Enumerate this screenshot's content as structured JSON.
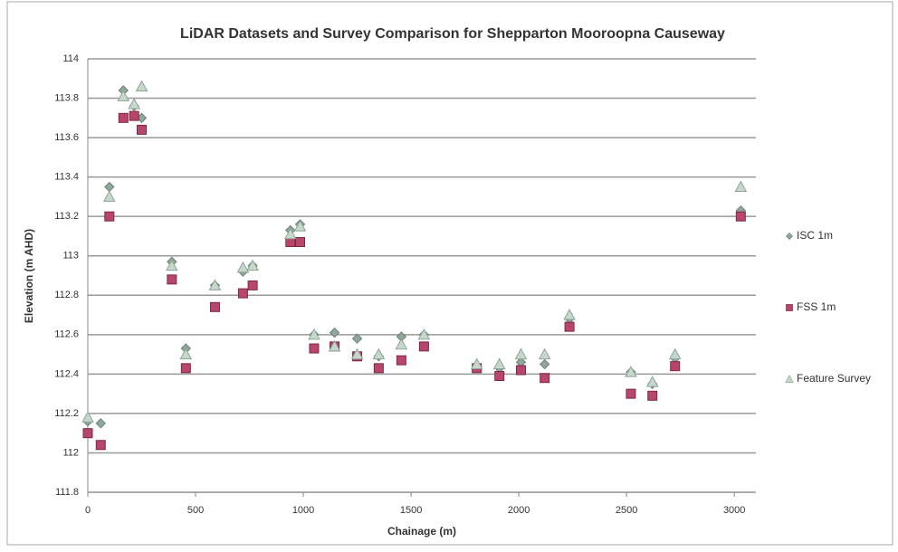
{
  "chart_data": {
    "type": "scatter",
    "title": "LiDAR Datasets and Survey Comparison for Shepparton Mooroopna Causeway",
    "x_label": "Chainage (m)",
    "y_label": "Elevation (m AHD)",
    "x": [
      0,
      60,
      100,
      165,
      215,
      250,
      390,
      455,
      590,
      720,
      765,
      940,
      985,
      1050,
      1145,
      1250,
      1350,
      1455,
      1560,
      1805,
      1910,
      2010,
      2120,
      2235,
      2520,
      2620,
      2725,
      3030
    ],
    "series": [
      {
        "name": "ISC 1m",
        "color": "#8fa89a",
        "marker": "diamond",
        "values": [
          112.16,
          112.15,
          113.35,
          113.84,
          113.76,
          113.7,
          112.97,
          112.53,
          112.85,
          112.92,
          112.95,
          113.13,
          113.16,
          112.6,
          112.61,
          112.58,
          112.49,
          112.59,
          112.6,
          112.44,
          112.43,
          112.46,
          112.45,
          112.68,
          112.41,
          112.35,
          112.48,
          113.23
        ]
      },
      {
        "name": "FSS 1m",
        "color": "#b8456a",
        "marker": "square",
        "values": [
          112.1,
          112.04,
          113.2,
          113.7,
          113.71,
          113.64,
          112.88,
          112.43,
          112.74,
          112.81,
          112.85,
          113.07,
          113.07,
          112.53,
          112.54,
          112.49,
          112.43,
          112.47,
          112.54,
          112.43,
          112.39,
          112.42,
          112.38,
          112.64,
          112.3,
          112.29,
          112.44,
          113.2
        ]
      },
      {
        "name": "Feature Survey",
        "color": "#c5d8c9",
        "marker": "triangle",
        "values": [
          112.18,
          null,
          113.3,
          113.81,
          113.77,
          113.86,
          112.95,
          112.5,
          112.85,
          112.94,
          112.95,
          113.11,
          113.15,
          112.6,
          112.54,
          112.5,
          112.5,
          112.55,
          112.6,
          112.45,
          112.45,
          112.5,
          112.5,
          112.7,
          112.41,
          112.36,
          112.5,
          113.35
        ]
      }
    ],
    "xlim": [
      0,
      3100
    ],
    "xticks": [
      0,
      500,
      1000,
      1500,
      2000,
      2500,
      3000
    ],
    "ylim": [
      111.8,
      114
    ],
    "yticks": [
      111.8,
      112,
      112.2,
      112.4,
      112.6,
      112.8,
      113,
      113.2,
      113.4,
      113.6,
      113.8,
      114
    ],
    "grid": true,
    "legend": "right"
  }
}
